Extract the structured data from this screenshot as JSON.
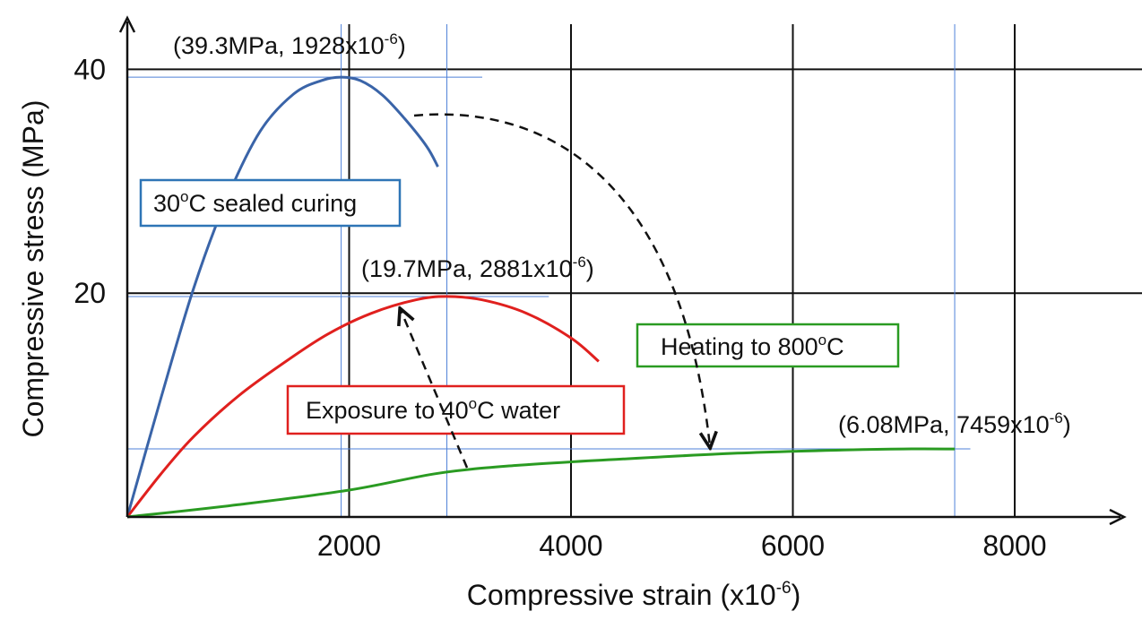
{
  "chart_data": {
    "type": "line",
    "xlabel": "Compressive strain (x10",
    "xlabel_sup": "-6",
    "xlabel_end": ")",
    "ylabel": "Compressive stress (MPa)",
    "xlim": [
      0,
      9000
    ],
    "ylim": [
      0,
      45
    ],
    "xticks": [
      2000,
      4000,
      6000,
      8000
    ],
    "xtick_labels": [
      "2000",
      "4000",
      "6000",
      "8000"
    ],
    "yticks": [
      20,
      40
    ],
    "ytick_labels": [
      "20",
      "40"
    ],
    "grid": true,
    "series": [
      {
        "color": "#3a64a8",
        "x": [
          0,
          300,
          600,
          900,
          1200,
          1500,
          1750,
          1928,
          2100,
          2300,
          2500,
          2700,
          2800
        ],
        "y": [
          0,
          10.5,
          20.5,
          28.5,
          34.5,
          37.8,
          39.0,
          39.3,
          39.0,
          37.7,
          35.6,
          33.1,
          31.3
        ]
      },
      {
        "color": "#e0201e",
        "x": [
          0,
          300,
          600,
          1000,
          1400,
          1800,
          2200,
          2600,
          2881,
          3200,
          3600,
          4000,
          4250
        ],
        "y": [
          0,
          3.8,
          7.2,
          10.8,
          13.7,
          16.3,
          18.2,
          19.4,
          19.7,
          19.4,
          18.2,
          16.0,
          13.9
        ]
      },
      {
        "color": "#2a9b22",
        "x": [
          0,
          1000,
          2000,
          2800,
          3500,
          4500,
          5500,
          6500,
          7000,
          7459
        ],
        "y": [
          0,
          1.1,
          2.4,
          3.9,
          4.6,
          5.2,
          5.7,
          6.0,
          6.08,
          6.08
        ]
      }
    ],
    "ref_lines": [
      {
        "orient": "h",
        "value": 39.3,
        "from": 0,
        "to": 3200
      },
      {
        "orient": "h",
        "value": 19.7,
        "from": 0,
        "to": 3800
      },
      {
        "orient": "h",
        "value": 6.08,
        "from": 0,
        "to": 7600
      },
      {
        "orient": "v",
        "value": 1928,
        "from": 0,
        "to": 45
      },
      {
        "orient": "v",
        "value": 2881,
        "from": 0,
        "to": 45
      },
      {
        "orient": "v",
        "value": 7459,
        "from": 0,
        "to": 45
      }
    ],
    "annotations": [
      {
        "id": "peak1",
        "text": "(39.3MPa, 1928x10",
        "sup": "-6",
        "end": ")"
      },
      {
        "id": "peak2",
        "text": "(19.7MPa, 2881x10",
        "sup": "-6",
        "end": ")"
      },
      {
        "id": "peak3",
        "text": "(6.08MPa, 7459x10",
        "sup": "-6",
        "end": ")"
      }
    ],
    "labels": [
      {
        "id": "sealed",
        "text_pre": "30",
        "sup": "o",
        "text_post": "C sealed curing",
        "color": "#2e75b6"
      },
      {
        "id": "water",
        "text_pre": "Exposure to 40",
        "sup": "o",
        "text_post": "C water",
        "color": "#e0201e"
      },
      {
        "id": "heating",
        "text_pre": "Heating to 800",
        "sup": "o",
        "text_post": "C",
        "color": "#2a9b22"
      }
    ]
  }
}
